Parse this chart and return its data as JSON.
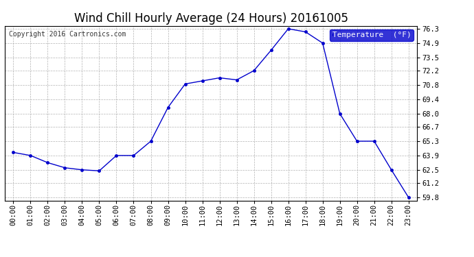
{
  "title": "Wind Chill Hourly Average (24 Hours) 20161005",
  "copyright": "Copyright 2016 Cartronics.com",
  "legend_label": "Temperature  (°F)",
  "hours": [
    "00:00",
    "01:00",
    "02:00",
    "03:00",
    "04:00",
    "05:00",
    "06:00",
    "07:00",
    "08:00",
    "09:00",
    "10:00",
    "11:00",
    "12:00",
    "13:00",
    "14:00",
    "15:00",
    "16:00",
    "17:00",
    "18:00",
    "19:00",
    "20:00",
    "21:00",
    "22:00",
    "23:00"
  ],
  "values": [
    64.2,
    63.9,
    63.2,
    62.7,
    62.5,
    62.4,
    63.9,
    63.9,
    65.3,
    68.6,
    70.9,
    71.2,
    71.5,
    71.3,
    72.2,
    74.2,
    76.3,
    76.0,
    74.9,
    68.0,
    65.3,
    65.3,
    62.5,
    59.8
  ],
  "ylim_min": 59.8,
  "ylim_max": 76.3,
  "yticks": [
    59.8,
    61.2,
    62.5,
    63.9,
    65.3,
    66.7,
    68.0,
    69.4,
    70.8,
    72.2,
    73.5,
    74.9,
    76.3
  ],
  "ytick_labels": [
    "59.8",
    "61.2",
    "62.5",
    "63.9",
    "65.3",
    "66.7",
    "68.0",
    "69.4",
    "70.8",
    "72.2",
    "73.5",
    "74.9",
    "76.3"
  ],
  "line_color": "#0000cc",
  "marker": "o",
  "marker_size": 3,
  "bg_color": "#ffffff",
  "plot_bg_color": "#ffffff",
  "grid_color": "#aaaaaa",
  "title_fontsize": 12,
  "tick_fontsize": 7.5,
  "copyright_fontsize": 7,
  "legend_bg_color": "#0000cc",
  "legend_text_color": "#ffffff",
  "legend_fontsize": 8,
  "border_color": "#000000"
}
